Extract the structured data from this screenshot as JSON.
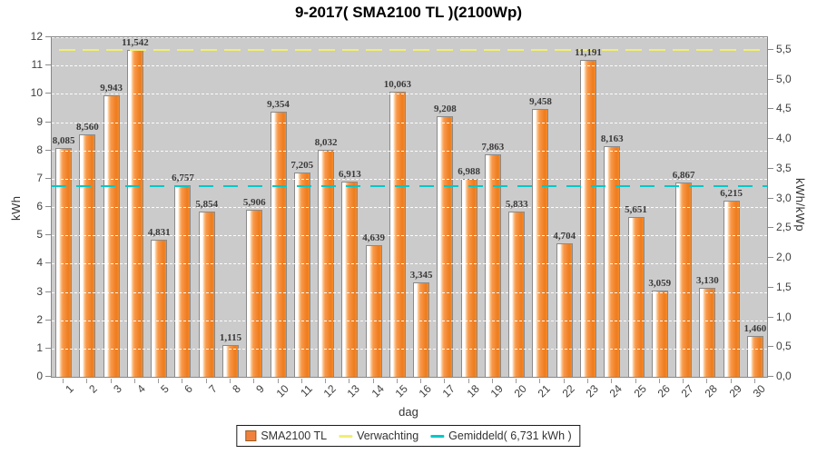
{
  "title": "9-2017( SMA2100 TL )(2100Wp)",
  "axes": {
    "left_label": "kWh",
    "right_label": "kWh/kWp",
    "x_label": "dag"
  },
  "legend": {
    "series_label": "SMA2100 TL",
    "expected_label": "Verwachting",
    "average_label": "Gemiddeld( 6,731 kWh )"
  },
  "colors": {
    "bar_orange": "#f78f3f",
    "expected_yellow": "#f2ee72",
    "average_cyan": "#00c8c8",
    "plot_background": "#cbcbcb",
    "gridline": "#ffffff"
  },
  "chart_data": {
    "type": "bar",
    "title": "9-2017( SMA2100 TL )(2100Wp)",
    "xlabel": "dag",
    "ylabel": "kWh",
    "ylabel_right": "kWh/kWp",
    "ylim": [
      0,
      12
    ],
    "ylim_right": [
      0,
      5.5
    ],
    "kwp": 2.1,
    "grid": "horizontal-dashed",
    "legend_position": "bottom",
    "categories": [
      "1",
      "2",
      "3",
      "4",
      "5",
      "6",
      "7",
      "8",
      "9",
      "10",
      "11",
      "12",
      "13",
      "14",
      "15",
      "16",
      "17",
      "18",
      "19",
      "20",
      "21",
      "22",
      "23",
      "24",
      "25",
      "26",
      "27",
      "28",
      "29",
      "30"
    ],
    "series": [
      {
        "name": "SMA2100 TL",
        "unit": "kWh",
        "values": [
          8.085,
          8.56,
          9.943,
          11.542,
          4.831,
          6.757,
          5.854,
          1.115,
          5.906,
          9.354,
          7.205,
          8.032,
          6.913,
          4.639,
          10.063,
          3.345,
          9.208,
          6.988,
          7.863,
          5.833,
          9.458,
          4.704,
          11.191,
          8.163,
          5.651,
          3.059,
          6.867,
          3.13,
          6.215,
          1.46
        ]
      }
    ],
    "reference_lines": [
      {
        "name": "Verwachting",
        "value_kwh": 11.55,
        "style": "dashed",
        "color": "#f2ee72"
      },
      {
        "name": "Gemiddeld",
        "value_kwh": 6.731,
        "style": "dashed",
        "color": "#00c8c8"
      }
    ]
  }
}
